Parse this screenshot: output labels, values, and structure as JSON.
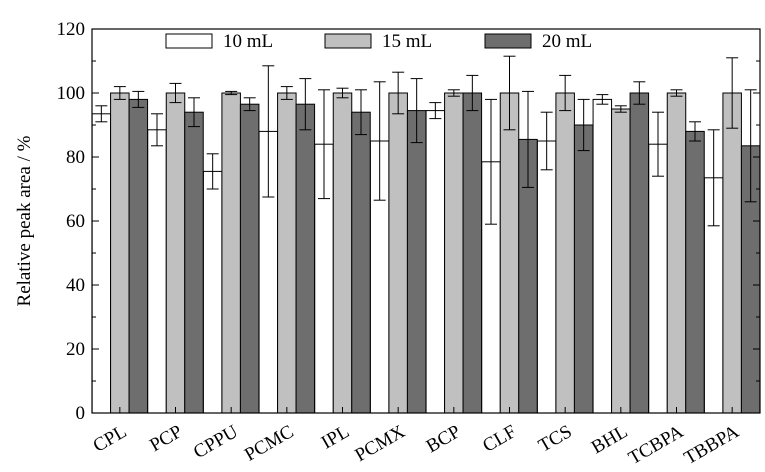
{
  "chart_data": {
    "type": "bar",
    "ylabel": "Relative peak area / %",
    "xlabel": "",
    "ylim": [
      0,
      120
    ],
    "yticks": [
      0,
      20,
      40,
      60,
      80,
      100,
      120
    ],
    "categories": [
      "CPL",
      "PCP",
      "CPPU",
      "PCMC",
      "IPL",
      "PCMX",
      "BCP",
      "CLF",
      "TCS",
      "BHL",
      "TCBPA",
      "TBBPA"
    ],
    "legend_position": "top",
    "grid": false,
    "series": [
      {
        "name": "10 mL",
        "color": "#ffffff",
        "values": [
          93.5,
          88.5,
          75.5,
          88,
          84,
          85,
          94.5,
          78.5,
          85,
          98,
          84,
          73.5
        ],
        "errors": [
          2.5,
          5,
          5.5,
          20.5,
          17,
          18.5,
          2.5,
          19.5,
          9,
          1.5,
          10,
          15
        ]
      },
      {
        "name": "15 mL",
        "color": "#c0c0c0",
        "values": [
          100,
          100,
          100,
          100,
          100,
          100,
          100,
          100,
          100,
          95,
          100,
          100
        ],
        "errors": [
          2,
          3,
          0.5,
          2,
          1.5,
          6.5,
          1,
          11.5,
          5.5,
          1,
          1,
          11
        ]
      },
      {
        "name": "20 mL",
        "color": "#6e6e6e",
        "values": [
          98,
          94,
          96.5,
          96.5,
          94,
          94.5,
          100,
          85.5,
          90,
          100,
          88,
          83.5
        ],
        "errors": [
          2.5,
          4.5,
          2,
          8,
          7,
          10,
          5.5,
          15,
          8,
          3.5,
          3,
          17.5
        ]
      }
    ]
  }
}
